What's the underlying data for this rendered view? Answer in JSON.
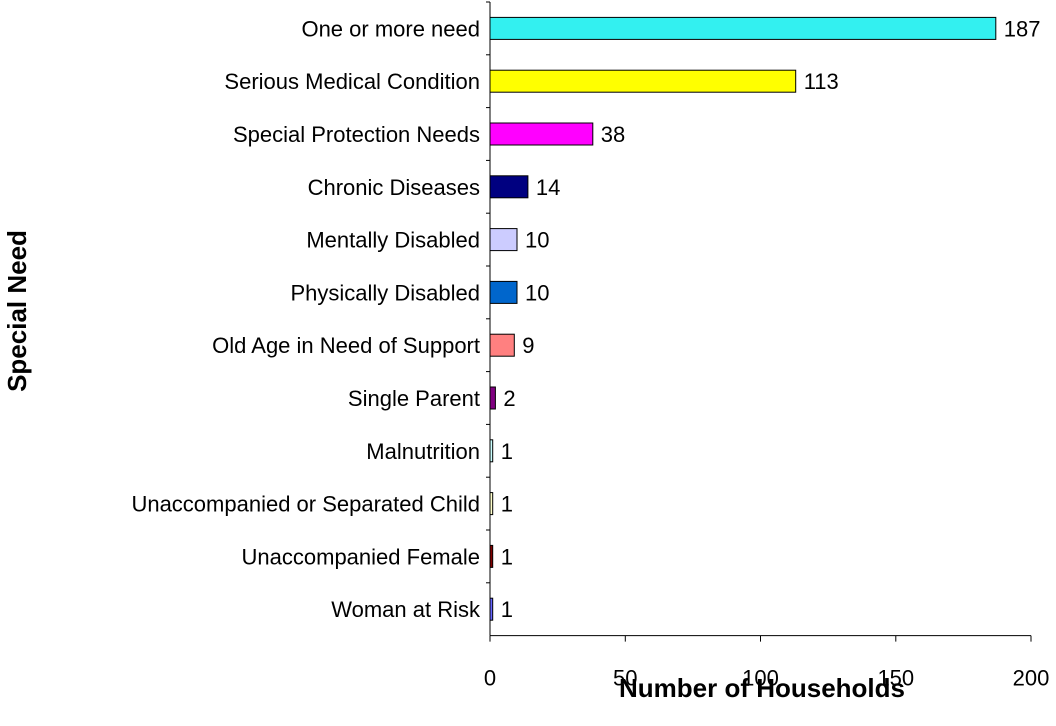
{
  "chart_data": {
    "type": "bar",
    "orientation": "horizontal",
    "title": "",
    "xlabel": "Number of Households",
    "ylabel": "Special Need",
    "xlim": [
      0,
      200
    ],
    "x_ticks": [
      0,
      50,
      100,
      150,
      200
    ],
    "grid": false,
    "legend": "none",
    "categories": [
      "One or more need",
      "Serious Medical Condition",
      "Special Protection Needs",
      "Chronic Diseases",
      "Mentally Disabled",
      "Physically Disabled",
      "Old Age in Need of Support",
      "Single Parent",
      "Malnutrition",
      "Unaccompanied or Separated Child",
      "Unaccompanied Female",
      "Woman at Risk"
    ],
    "values": [
      187,
      113,
      38,
      14,
      10,
      10,
      9,
      2,
      1,
      1,
      1,
      1
    ],
    "colors": [
      "#33f0f0",
      "#ffff00",
      "#ff00ff",
      "#000080",
      "#ccccff",
      "#0066cc",
      "#ff8080",
      "#800080",
      "#ccffff",
      "#ffffcc",
      "#800000",
      "#6666ff"
    ]
  }
}
